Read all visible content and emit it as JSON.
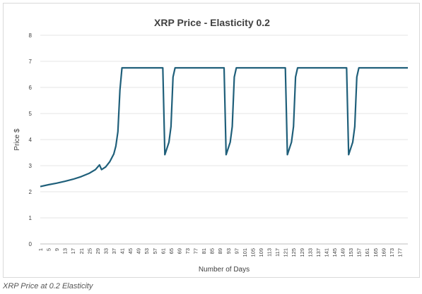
{
  "caption": "XRP Price at 0.2 Elasticity",
  "chart_data": {
    "type": "line",
    "title": "XRP Price - Elasticity 0.2",
    "xlabel": "Number of Days",
    "ylabel": "Price $",
    "ylim": [
      0,
      8
    ],
    "yticks": [
      0,
      1,
      2,
      3,
      4,
      5,
      6,
      7,
      8
    ],
    "xrange": [
      1,
      181
    ],
    "xticks": [
      1,
      5,
      9,
      13,
      17,
      21,
      25,
      29,
      33,
      37,
      41,
      45,
      49,
      53,
      57,
      61,
      65,
      69,
      73,
      77,
      81,
      85,
      89,
      93,
      97,
      101,
      105,
      109,
      113,
      117,
      121,
      125,
      129,
      133,
      137,
      141,
      145,
      149,
      153,
      157,
      161,
      165,
      169,
      173,
      177
    ],
    "grid": true,
    "legend": "none",
    "line_color": "#1f5f7a",
    "series": [
      {
        "points": [
          [
            1,
            2.2
          ],
          [
            5,
            2.27
          ],
          [
            9,
            2.33
          ],
          [
            13,
            2.4
          ],
          [
            17,
            2.48
          ],
          [
            21,
            2.58
          ],
          [
            25,
            2.71
          ],
          [
            28,
            2.85
          ],
          [
            30,
            3.03
          ],
          [
            31,
            2.85
          ],
          [
            33,
            2.95
          ],
          [
            35,
            3.15
          ],
          [
            37,
            3.45
          ],
          [
            38,
            3.75
          ],
          [
            39,
            4.3
          ],
          [
            40,
            5.9
          ],
          [
            41,
            6.75
          ],
          [
            61,
            6.75
          ],
          [
            62,
            3.42
          ],
          [
            64,
            3.9
          ],
          [
            65,
            4.5
          ],
          [
            66,
            6.4
          ],
          [
            67,
            6.75
          ],
          [
            91,
            6.75
          ],
          [
            92,
            3.42
          ],
          [
            94,
            3.9
          ],
          [
            95,
            4.5
          ],
          [
            96,
            6.4
          ],
          [
            97,
            6.75
          ],
          [
            121,
            6.75
          ],
          [
            122,
            3.42
          ],
          [
            124,
            3.9
          ],
          [
            125,
            4.5
          ],
          [
            126,
            6.4
          ],
          [
            127,
            6.75
          ],
          [
            151,
            6.75
          ],
          [
            152,
            3.42
          ],
          [
            154,
            3.9
          ],
          [
            155,
            4.5
          ],
          [
            156,
            6.4
          ],
          [
            157,
            6.75
          ],
          [
            181,
            6.75
          ]
        ]
      }
    ]
  }
}
